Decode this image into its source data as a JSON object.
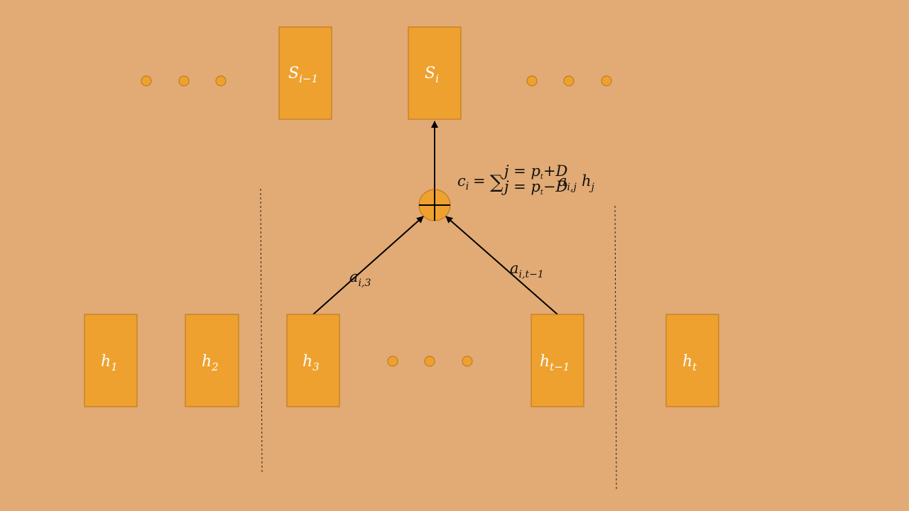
{
  "decoder": {
    "prev_state": {
      "base": "S",
      "sub": "i−1"
    },
    "state": {
      "base": "S",
      "sub": "i"
    }
  },
  "encoder": {
    "h1": {
      "base": "h",
      "sub": "1"
    },
    "h2": {
      "base": "h",
      "sub": "2"
    },
    "h3": {
      "base": "h",
      "sub": "3"
    },
    "h_t_minus_1": {
      "base": "h",
      "sub": "t−1"
    },
    "h_t": {
      "base": "h",
      "sub": "t"
    }
  },
  "weights": {
    "left": {
      "base": "a",
      "sub": "i,3"
    },
    "right": {
      "base": "a",
      "sub": "i,t−1"
    }
  },
  "formula": {
    "lhs": "c",
    "lhs_sub": "i",
    "eq": "=",
    "sum": "∑",
    "upper": "j = p",
    "upper_p_sub": "t",
    "upper_tail": "+D",
    "lower": "j = p",
    "lower_p_sub": "t",
    "lower_tail": "−D",
    "term_a": "a",
    "term_a_sub": "i,j",
    "term_h": "h",
    "term_h_sub": "j"
  },
  "colors": {
    "background": "#e2aa74",
    "box_fill": "#eea12e",
    "box_stroke": "#b8741a"
  },
  "icons": {
    "sum_node": "circle-plus-icon",
    "ellipsis": "dot-icon"
  }
}
